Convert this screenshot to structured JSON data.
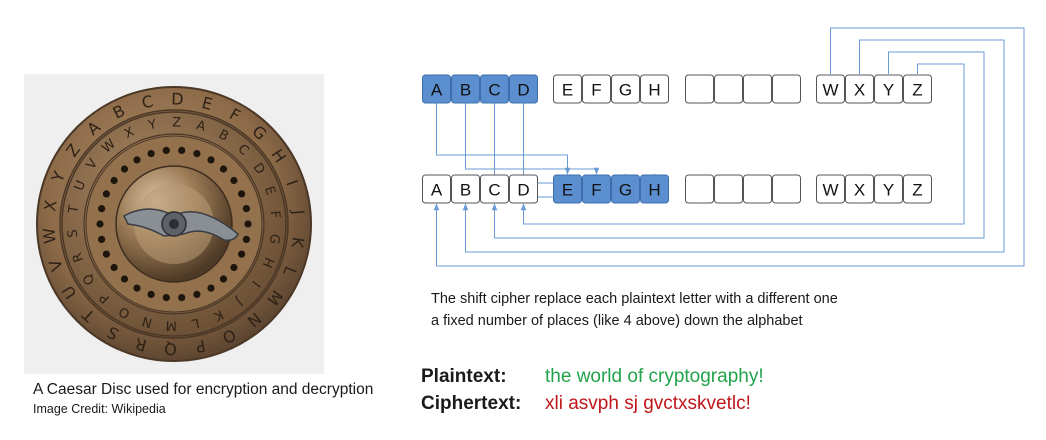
{
  "caption": "A Caesar Disc used for encryption and decryption",
  "credit": "Image Credit: Wikipedia",
  "disc": {
    "outer_letters": [
      "A",
      "B",
      "C",
      "D",
      "E",
      "F",
      "G",
      "H",
      "I",
      "J",
      "K",
      "L",
      "M",
      "N",
      "O",
      "P",
      "Q",
      "R",
      "S",
      "T",
      "U",
      "V",
      "W",
      "X",
      "Y",
      "Z"
    ],
    "inner_letters": [
      "W",
      "X",
      "Y",
      "Z",
      "A",
      "B",
      "C",
      "D",
      "E",
      "F",
      "G",
      "H",
      "I",
      "J",
      "K",
      "L",
      "M",
      "N",
      "O",
      "P",
      "Q",
      "R",
      "S",
      "T",
      "U",
      "V"
    ]
  },
  "diagram": {
    "top_groups": [
      {
        "letters": [
          "A",
          "B",
          "C",
          "D"
        ],
        "highlight": true
      },
      {
        "letters": [
          "E",
          "F",
          "G",
          "H"
        ],
        "highlight": false
      },
      {
        "letters": [
          "",
          "",
          "",
          ""
        ],
        "highlight": false
      },
      {
        "letters": [
          "W",
          "X",
          "Y",
          "Z"
        ],
        "highlight": false
      }
    ],
    "bottom_groups": [
      {
        "letters": [
          "A",
          "B",
          "C",
          "D"
        ],
        "highlight": false
      },
      {
        "letters": [
          "E",
          "F",
          "G",
          "H"
        ],
        "highlight": true
      },
      {
        "letters": [
          "",
          "",
          "",
          ""
        ],
        "highlight": false
      },
      {
        "letters": [
          "W",
          "X",
          "Y",
          "Z"
        ],
        "highlight": false
      }
    ],
    "shift": 4,
    "colors": {
      "highlight": "#5b8fd0",
      "arrow": "#6a9bd4",
      "border": "#3d6fae"
    }
  },
  "description": {
    "line1": "The shift cipher replace each plaintext letter with a different one",
    "line2": "a fixed number of places (like 4 above) down the alphabet"
  },
  "plaintext": {
    "label": "Plaintext:",
    "value": "the world of cryptography!",
    "color": "#22a34a"
  },
  "ciphertext": {
    "label": "Ciphertext:",
    "value": "xli asvph sj gvctxskvetlc!",
    "color": "#c0161b"
  }
}
